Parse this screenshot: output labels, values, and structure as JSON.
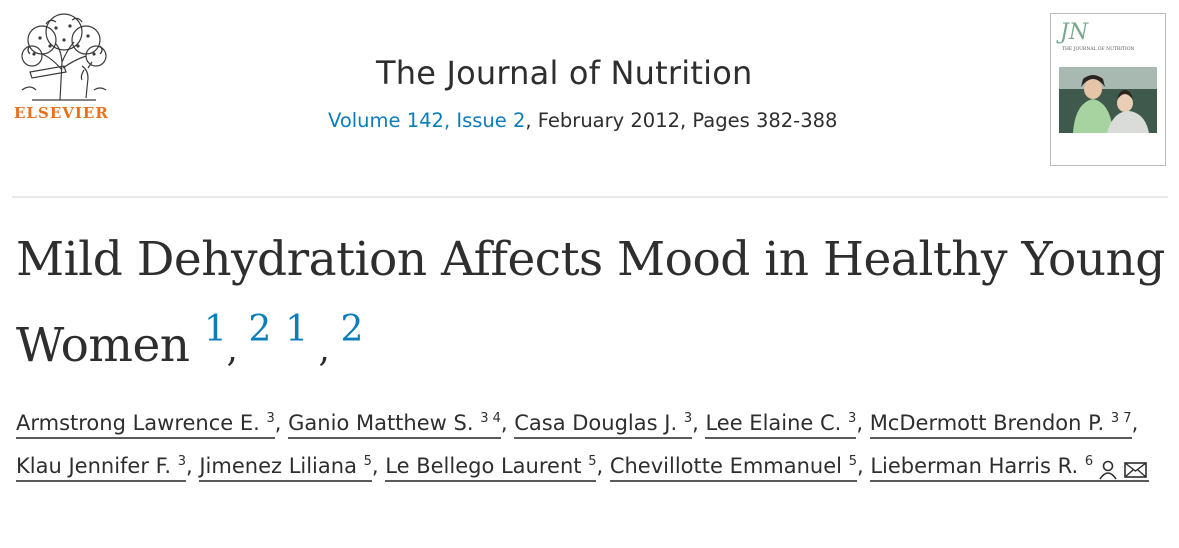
{
  "publisher": {
    "name": "ELSEVIER",
    "logo_icon": "elsevier-tree-icon"
  },
  "journal": {
    "title": "The Journal of Nutrition",
    "volume_issue": "Volume 142, Issue 2",
    "date_pages": ", February 2012, Pages 382-388"
  },
  "cover": {
    "label": "JN",
    "subtitle": "THE JOURNAL OF NUTRITION"
  },
  "article": {
    "title_text": "Mild Dehydration Affects Mood in Healthy Young Women",
    "footnotes": [
      "1",
      "2",
      "1",
      "2"
    ]
  },
  "authors": [
    {
      "name": "Armstrong Lawrence E.",
      "sup": "3"
    },
    {
      "name": "Ganio Matthew S.",
      "sup": "3 4"
    },
    {
      "name": "Casa Douglas J.",
      "sup": "3"
    },
    {
      "name": "Lee Elaine C.",
      "sup": "3"
    },
    {
      "name": "McDermott Brendon P.",
      "sup": "3 7"
    },
    {
      "name": "Klau Jennifer F.",
      "sup": "3"
    },
    {
      "name": "Jimenez Liliana",
      "sup": "5"
    },
    {
      "name": "Le Bellego Laurent",
      "sup": "5"
    },
    {
      "name": "Chevillotte Emmanuel",
      "sup": "5"
    },
    {
      "name": "Lieberman Harris R.",
      "sup": "6"
    }
  ],
  "author_icons": [
    "person-icon",
    "envelope-icon"
  ]
}
